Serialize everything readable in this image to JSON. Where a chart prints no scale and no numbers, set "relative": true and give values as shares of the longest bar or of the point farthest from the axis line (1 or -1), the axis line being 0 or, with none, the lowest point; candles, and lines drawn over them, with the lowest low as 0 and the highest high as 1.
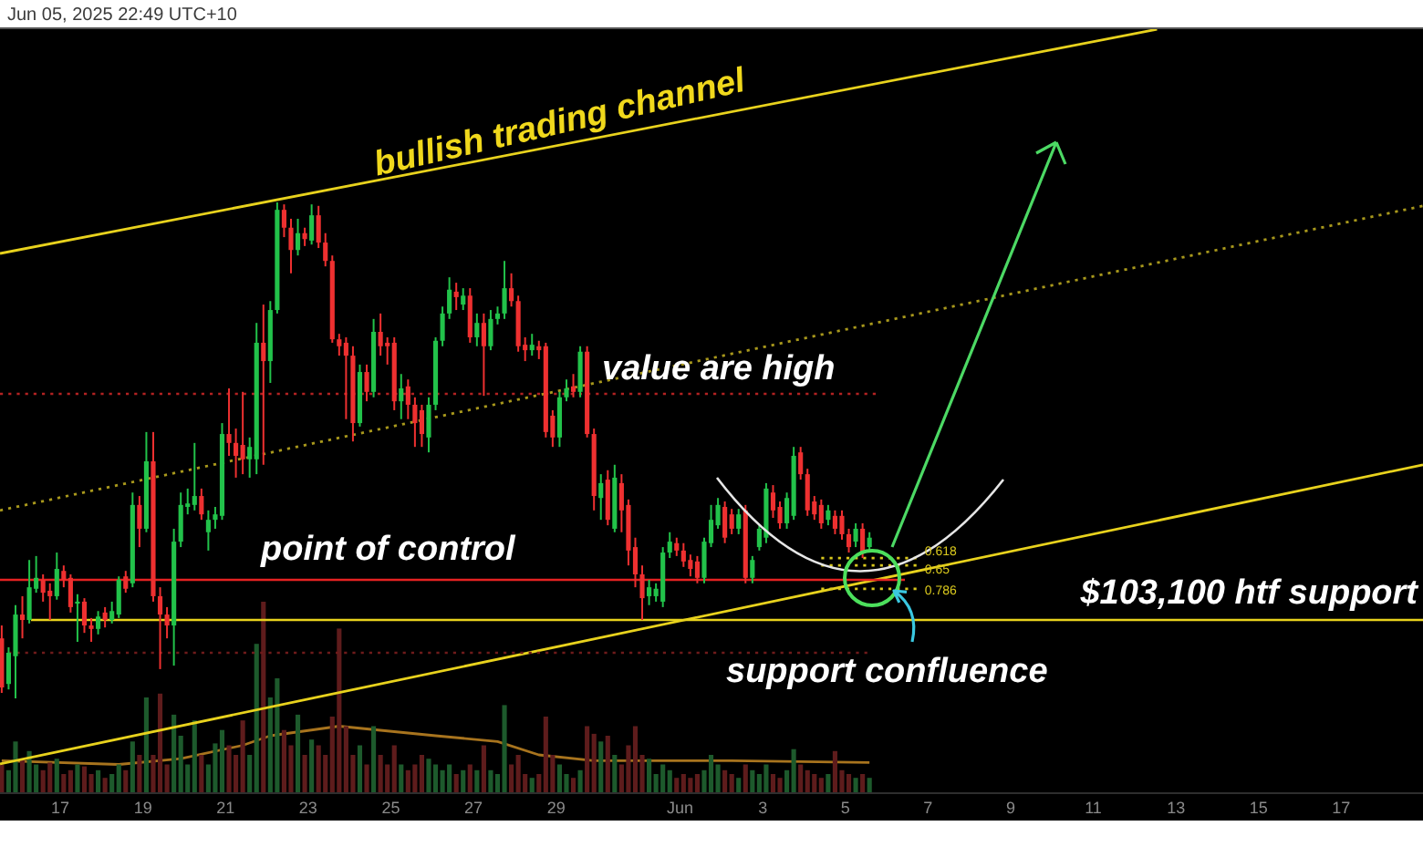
{
  "chart_data": [
    {
      "type": "candlestick",
      "relative": true,
      "tick_labels": false,
      "x": [
        "2025-05-15T14:00",
        "2025-05-15T18:00",
        "2025-05-15T22:00",
        "2025-05-16T02:00",
        "2025-05-16T06:00",
        "2025-05-16T10:00",
        "2025-05-16T14:00",
        "2025-05-16T18:00",
        "2025-05-16T22:00",
        "2025-05-17T02:00",
        "2025-05-17T06:00",
        "2025-05-17T10:00",
        "2025-05-17T14:00",
        "2025-05-17T18:00",
        "2025-05-17T22:00",
        "2025-05-18T02:00",
        "2025-05-18T06:00",
        "2025-05-18T10:00",
        "2025-05-18T14:00",
        "2025-05-18T18:00",
        "2025-05-18T22:00",
        "2025-05-19T02:00",
        "2025-05-19T06:00",
        "2025-05-19T10:00",
        "2025-05-19T14:00",
        "2025-05-19T18:00",
        "2025-05-19T22:00",
        "2025-05-20T02:00",
        "2025-05-20T06:00",
        "2025-05-20T10:00",
        "2025-05-20T14:00",
        "2025-05-20T18:00",
        "2025-05-20T22:00",
        "2025-05-21T02:00",
        "2025-05-21T06:00",
        "2025-05-21T10:00",
        "2025-05-21T14:00",
        "2025-05-21T18:00",
        "2025-05-21T22:00",
        "2025-05-22T02:00",
        "2025-05-22T06:00",
        "2025-05-22T10:00",
        "2025-05-22T14:00",
        "2025-05-22T18:00",
        "2025-05-22T22:00",
        "2025-05-23T02:00",
        "2025-05-23T06:00",
        "2025-05-23T10:00",
        "2025-05-23T14:00",
        "2025-05-23T18:00",
        "2025-05-23T22:00",
        "2025-05-24T02:00",
        "2025-05-24T06:00",
        "2025-05-24T10:00",
        "2025-05-24T14:00",
        "2025-05-24T18:00",
        "2025-05-24T22:00",
        "2025-05-25T02:00",
        "2025-05-25T06:00",
        "2025-05-25T10:00",
        "2025-05-25T14:00",
        "2025-05-25T18:00",
        "2025-05-25T22:00",
        "2025-05-26T02:00",
        "2025-05-26T06:00",
        "2025-05-26T10:00",
        "2025-05-26T14:00",
        "2025-05-26T18:00",
        "2025-05-26T22:00",
        "2025-05-27T02:00",
        "2025-05-27T06:00",
        "2025-05-27T10:00",
        "2025-05-27T14:00",
        "2025-05-27T18:00",
        "2025-05-27T22:00",
        "2025-05-28T02:00",
        "2025-05-28T06:00",
        "2025-05-28T10:00",
        "2025-05-28T14:00",
        "2025-05-28T18:00",
        "2025-05-28T22:00",
        "2025-05-29T02:00",
        "2025-05-29T06:00",
        "2025-05-29T10:00",
        "2025-05-29T14:00",
        "2025-05-29T18:00",
        "2025-05-29T22:00",
        "2025-05-30T02:00",
        "2025-05-30T06:00",
        "2025-05-30T10:00",
        "2025-05-30T14:00",
        "2025-05-30T18:00",
        "2025-05-30T22:00",
        "2025-05-31T02:00",
        "2025-05-31T06:00",
        "2025-05-31T10:00",
        "2025-05-31T14:00",
        "2025-05-31T18:00",
        "2025-05-31T22:00",
        "2025-06-01T02:00",
        "2025-06-01T06:00",
        "2025-06-01T10:00",
        "2025-06-01T14:00",
        "2025-06-01T18:00",
        "2025-06-01T22:00",
        "2025-06-02T02:00",
        "2025-06-02T06:00",
        "2025-06-02T10:00",
        "2025-06-02T14:00",
        "2025-06-02T18:00",
        "2025-06-02T22:00",
        "2025-06-03T02:00",
        "2025-06-03T06:00",
        "2025-06-03T10:00",
        "2025-06-03T14:00",
        "2025-06-03T18:00",
        "2025-06-03T22:00",
        "2025-06-04T02:00",
        "2025-06-04T06:00",
        "2025-06-04T10:00",
        "2025-06-04T14:00",
        "2025-06-04T18:00",
        "2025-06-04T22:00",
        "2025-06-05T02:00",
        "2025-06-05T06:00",
        "2025-06-05T10:00",
        "2025-06-05T14:00"
      ],
      "ohlc": [
        [
          0.121,
          0.147,
          0.011,
          0.022
        ],
        [
          0.029,
          0.103,
          0.018,
          0.092
        ],
        [
          0.085,
          0.188,
          0,
          0.169
        ],
        [
          0.169,
          0.206,
          0.121,
          0.158
        ],
        [
          0.158,
          0.279,
          0.151,
          0.224
        ],
        [
          0.221,
          0.287,
          0.213,
          0.243
        ],
        [
          0.239,
          0.25,
          0.195,
          0.213
        ],
        [
          0.217,
          0.232,
          0.158,
          0.206
        ],
        [
          0.206,
          0.294,
          0.199,
          0.261
        ],
        [
          0.257,
          0.268,
          0.224,
          0.239
        ],
        [
          0.243,
          0.25,
          0.173,
          0.184
        ],
        [
          0.191,
          0.21,
          0.114,
          0.195
        ],
        [
          0.195,
          0.202,
          0.132,
          0.147
        ],
        [
          0.147,
          0.162,
          0.114,
          0.14
        ],
        [
          0.14,
          0.176,
          0.129,
          0.165
        ],
        [
          0.173,
          0.184,
          0.143,
          0.158
        ],
        [
          0.158,
          0.195,
          0.151,
          0.176
        ],
        [
          0.169,
          0.246,
          0.162,
          0.239
        ],
        [
          0.246,
          0.257,
          0.213,
          0.221
        ],
        [
          0.232,
          0.415,
          0.224,
          0.39
        ],
        [
          0.39,
          0.408,
          0.305,
          0.342
        ],
        [
          0.342,
          0.537,
          0.335,
          0.478
        ],
        [
          0.478,
          0.537,
          0.195,
          0.206
        ],
        [
          0.206,
          0.224,
          0.059,
          0.169
        ],
        [
          0.169,
          0.184,
          0.121,
          0.147
        ],
        [
          0.147,
          0.342,
          0.066,
          0.316
        ],
        [
          0.316,
          0.415,
          0.305,
          0.39
        ],
        [
          0.386,
          0.423,
          0.371,
          0.393
        ],
        [
          0.39,
          0.515,
          0.379,
          0.408
        ],
        [
          0.408,
          0.423,
          0.36,
          0.371
        ],
        [
          0.335,
          0.379,
          0.298,
          0.36
        ],
        [
          0.36,
          0.386,
          0.342,
          0.371
        ],
        [
          0.368,
          0.555,
          0.36,
          0.533
        ],
        [
          0.533,
          0.625,
          0.489,
          0.515
        ],
        [
          0.515,
          0.544,
          0.445,
          0.489
        ],
        [
          0.511,
          0.618,
          0.452,
          0.482
        ],
        [
          0.482,
          0.526,
          0.445,
          0.507
        ],
        [
          0.482,
          0.757,
          0.452,
          0.717
        ],
        [
          0.717,
          0.794,
          0.471,
          0.68
        ],
        [
          0.68,
          0.801,
          0.636,
          0.783
        ],
        [
          0.783,
          1,
          0.776,
          0.985
        ],
        [
          0.985,
          0.996,
          0.93,
          0.949
        ],
        [
          0.949,
          0.967,
          0.857,
          0.904
        ],
        [
          0.904,
          0.967,
          0.893,
          0.938
        ],
        [
          0.938,
          0.949,
          0.912,
          0.926
        ],
        [
          0.923,
          0.996,
          0.915,
          0.974
        ],
        [
          0.974,
          0.993,
          0.908,
          0.919
        ],
        [
          0.919,
          0.938,
          0.871,
          0.882
        ],
        [
          0.882,
          0.893,
          0.717,
          0.724
        ],
        [
          0.724,
          0.735,
          0.691,
          0.71
        ],
        [
          0.717,
          0.728,
          0.563,
          0.691
        ],
        [
          0.691,
          0.71,
          0.518,
          0.555
        ],
        [
          0.555,
          0.673,
          0.548,
          0.658
        ],
        [
          0.658,
          0.673,
          0.599,
          0.618
        ],
        [
          0.618,
          0.765,
          0.607,
          0.739
        ],
        [
          0.739,
          0.776,
          0.691,
          0.71
        ],
        [
          0.717,
          0.728,
          0.673,
          0.71
        ],
        [
          0.717,
          0.728,
          0.581,
          0.599
        ],
        [
          0.599,
          0.654,
          0.563,
          0.625
        ],
        [
          0.629,
          0.643,
          0.563,
          0.592
        ],
        [
          0.592,
          0.607,
          0.507,
          0.555
        ],
        [
          0.581,
          0.592,
          0.507,
          0.533
        ],
        [
          0.526,
          0.607,
          0.496,
          0.592
        ],
        [
          0.592,
          0.728,
          0.581,
          0.721
        ],
        [
          0.721,
          0.79,
          0.71,
          0.776
        ],
        [
          0.776,
          0.849,
          0.765,
          0.824
        ],
        [
          0.82,
          0.838,
          0.783,
          0.809
        ],
        [
          0.794,
          0.827,
          0.783,
          0.812
        ],
        [
          0.812,
          0.827,
          0.717,
          0.728
        ],
        [
          0.728,
          0.776,
          0.71,
          0.757
        ],
        [
          0.757,
          0.776,
          0.61,
          0.71
        ],
        [
          0.71,
          0.783,
          0.702,
          0.765
        ],
        [
          0.765,
          0.79,
          0.754,
          0.776
        ],
        [
          0.776,
          0.882,
          0.765,
          0.827
        ],
        [
          0.827,
          0.857,
          0.79,
          0.801
        ],
        [
          0.801,
          0.812,
          0.699,
          0.71
        ],
        [
          0.713,
          0.728,
          0.68,
          0.702
        ],
        [
          0.702,
          0.735,
          0.691,
          0.713
        ],
        [
          0.71,
          0.721,
          0.684,
          0.702
        ],
        [
          0.71,
          0.717,
          0.526,
          0.537
        ],
        [
          0.57,
          0.581,
          0.507,
          0.526
        ],
        [
          0.526,
          0.618,
          0.507,
          0.607
        ],
        [
          0.607,
          0.643,
          0.599,
          0.625
        ],
        [
          0.629,
          0.654,
          0.607,
          0.618
        ],
        [
          0.618,
          0.71,
          0.607,
          0.699
        ],
        [
          0.699,
          0.71,
          0.526,
          0.533
        ],
        [
          0.533,
          0.544,
          0.379,
          0.408
        ],
        [
          0.404,
          0.452,
          0.36,
          0.434
        ],
        [
          0.441,
          0.46,
          0.349,
          0.36
        ],
        [
          0.342,
          0.471,
          0.335,
          0.445
        ],
        [
          0.434,
          0.452,
          0.335,
          0.379
        ],
        [
          0.39,
          0.401,
          0.268,
          0.298
        ],
        [
          0.305,
          0.324,
          0.224,
          0.25
        ],
        [
          0.25,
          0.268,
          0.158,
          0.202
        ],
        [
          0.206,
          0.239,
          0.188,
          0.224
        ],
        [
          0.206,
          0.232,
          0.195,
          0.221
        ],
        [
          0.195,
          0.305,
          0.184,
          0.294
        ],
        [
          0.294,
          0.335,
          0.283,
          0.316
        ],
        [
          0.313,
          0.324,
          0.287,
          0.298
        ],
        [
          0.298,
          0.313,
          0.265,
          0.276
        ],
        [
          0.279,
          0.29,
          0.246,
          0.261
        ],
        [
          0.276,
          0.287,
          0.232,
          0.243
        ],
        [
          0.243,
          0.324,
          0.232,
          0.316
        ],
        [
          0.313,
          0.39,
          0.305,
          0.36
        ],
        [
          0.349,
          0.404,
          0.342,
          0.39
        ],
        [
          0.386,
          0.397,
          0.313,
          0.324
        ],
        [
          0.371,
          0.382,
          0.331,
          0.342
        ],
        [
          0.342,
          0.382,
          0.331,
          0.371
        ],
        [
          0.379,
          0.39,
          0.232,
          0.243
        ],
        [
          0.243,
          0.287,
          0.232,
          0.279
        ],
        [
          0.305,
          0.349,
          0.298,
          0.342
        ],
        [
          0.324,
          0.434,
          0.313,
          0.423
        ],
        [
          0.415,
          0.43,
          0.364,
          0.379
        ],
        [
          0.386,
          0.397,
          0.342,
          0.353
        ],
        [
          0.353,
          0.415,
          0.342,
          0.404
        ],
        [
          0.368,
          0.507,
          0.36,
          0.489
        ],
        [
          0.496,
          0.507,
          0.441,
          0.452
        ],
        [
          0.452,
          0.463,
          0.368,
          0.379
        ],
        [
          0.397,
          0.408,
          0.36,
          0.371
        ],
        [
          0.39,
          0.401,
          0.342,
          0.353
        ],
        [
          0.36,
          0.39,
          0.349,
          0.379
        ],
        [
          0.368,
          0.379,
          0.331,
          0.342
        ],
        [
          0.368,
          0.379,
          0.32,
          0.331
        ],
        [
          0.331,
          0.342,
          0.294,
          0.305
        ],
        [
          0.316,
          0.353,
          0.305,
          0.342
        ],
        [
          0.342,
          0.353,
          0.283,
          0.294
        ],
        [
          0.305,
          0.335,
          0.298,
          0.324
        ]
      ],
      "colors": [
        "#ee3030",
        "#22c24a",
        "#22c24a",
        "#ee3030",
        "#22c24a",
        "#22c24a",
        "#ee3030",
        "#ee3030",
        "#22c24a",
        "#ee3030",
        "#ee3030",
        "#22c24a",
        "#ee3030",
        "#ee3030",
        "#22c24a",
        "#ee3030",
        "#22c24a",
        "#22c24a",
        "#ee3030",
        "#22c24a",
        "#ee3030",
        "#22c24a",
        "#ee3030",
        "#ee3030",
        "#ee3030",
        "#22c24a",
        "#22c24a",
        "#22c24a",
        "#22c24a",
        "#ee3030",
        "#22c24a",
        "#22c24a",
        "#22c24a",
        "#ee3030",
        "#ee3030",
        "#ee3030",
        "#22c24a",
        "#22c24a",
        "#ee3030",
        "#22c24a",
        "#22c24a",
        "#ee3030",
        "#ee3030",
        "#22c24a",
        "#ee3030",
        "#22c24a",
        "#ee3030",
        "#ee3030",
        "#ee3030",
        "#ee3030",
        "#ee3030",
        "#ee3030",
        "#22c24a",
        "#ee3030",
        "#22c24a",
        "#ee3030",
        "#ee3030",
        "#ee3030",
        "#22c24a",
        "#ee3030",
        "#ee3030",
        "#ee3030",
        "#22c24a",
        "#22c24a",
        "#22c24a",
        "#22c24a",
        "#ee3030",
        "#22c24a",
        "#ee3030",
        "#22c24a",
        "#ee3030",
        "#22c24a",
        "#22c24a",
        "#22c24a",
        "#ee3030",
        "#ee3030",
        "#ee3030",
        "#22c24a",
        "#ee3030",
        "#ee3030",
        "#ee3030",
        "#22c24a",
        "#22c24a",
        "#ee3030",
        "#22c24a",
        "#ee3030",
        "#ee3030",
        "#22c24a",
        "#ee3030",
        "#22c24a",
        "#ee3030",
        "#ee3030",
        "#ee3030",
        "#ee3030",
        "#22c24a",
        "#22c24a",
        "#22c24a",
        "#22c24a",
        "#ee3030",
        "#ee3030",
        "#ee3030",
        "#ee3030",
        "#22c24a",
        "#22c24a",
        "#22c24a",
        "#ee3030",
        "#ee3030",
        "#22c24a",
        "#ee3030",
        "#22c24a",
        "#22c24a",
        "#22c24a",
        "#ee3030",
        "#ee3030",
        "#22c24a",
        "#22c24a",
        "#ee3030",
        "#ee3030",
        "#ee3030",
        "#ee3030",
        "#22c24a",
        "#ee3030",
        "#ee3030",
        "#ee3030",
        "#22c24a",
        "#ee3030",
        "#22c24a"
      ],
      "xlim": [
        "2025-05-15T13:00",
        "2025-06-18T23:30"
      ],
      "series": [
        {
          "type": "line",
          "color": "#e8d21d",
          "x": [
            "2025-05-15T13:00",
            "2025-06-12T13:00"
          ],
          "values": [
            0.897,
            1.349
          ]
        },
        {
          "type": "line",
          "color": "#a8981c",
          "line_style": "dotted",
          "x": [
            "2025-05-15T13:00",
            "2025-06-18T23:30"
          ],
          "values": [
            0.379,
            0.993
          ]
        },
        {
          "type": "line",
          "color": "#e8d21d",
          "x": [
            "2025-05-15T13:00",
            "2025-06-18T23:30"
          ],
          "values": [
            -0.132,
            0.471
          ]
        },
        {
          "type": "line",
          "name": "0.618",
          "color": "#d9c81d",
          "line_style": "dotted",
          "x": [
            "2025-06-04T10:00",
            "2025-06-06T20:00"
          ],
          "values": [
            0.283,
            0.283
          ]
        },
        {
          "type": "line",
          "name": "0.65",
          "color": "#d9c81d",
          "line_style": "dotted",
          "x": [
            "2025-06-04T10:00",
            "2025-06-06T20:00"
          ],
          "values": [
            0.268,
            0.268
          ]
        },
        {
          "type": "line",
          "name": "0.786",
          "color": "#d9c81d",
          "line_style": "dotted",
          "x": [
            "2025-06-04T10:00",
            "2025-06-06T20:00"
          ],
          "values": [
            0.221,
            0.221
          ]
        }
      ],
      "ref_lines": [
        {
          "axis": "y",
          "value": 0.614,
          "label": "value are high",
          "color": "#b22222",
          "line_style": "dotted"
        },
        {
          "axis": "y",
          "value": 0.239,
          "label": "point of control",
          "color": "#e52222"
        },
        {
          "axis": "y",
          "value": 0.092,
          "color": "#6e1b1b",
          "line_style": "dotted"
        },
        {
          "axis": "y",
          "value": 0.158,
          "label": "$103,100 htf support",
          "color": "#e8d21d"
        }
      ],
      "annotations": [
        "Jun 05, 2025 22:49 UTC+10",
        "bullish trading channel",
        "support confluence"
      ]
    },
    {
      "type": "bar",
      "relative": true,
      "x": [
        "2025-05-15T14:00",
        "2025-05-15T18:00",
        "2025-05-15T22:00",
        "2025-05-16T02:00",
        "2025-05-16T06:00",
        "2025-05-16T10:00",
        "2025-05-16T14:00",
        "2025-05-16T18:00",
        "2025-05-16T22:00",
        "2025-05-17T02:00",
        "2025-05-17T06:00",
        "2025-05-17T10:00",
        "2025-05-17T14:00",
        "2025-05-17T18:00",
        "2025-05-17T22:00",
        "2025-05-18T02:00",
        "2025-05-18T06:00",
        "2025-05-18T10:00",
        "2025-05-18T14:00",
        "2025-05-18T18:00",
        "2025-05-18T22:00",
        "2025-05-19T02:00",
        "2025-05-19T06:00",
        "2025-05-19T10:00",
        "2025-05-19T14:00",
        "2025-05-19T18:00",
        "2025-05-19T22:00",
        "2025-05-20T02:00",
        "2025-05-20T06:00",
        "2025-05-20T10:00",
        "2025-05-20T14:00",
        "2025-05-20T18:00",
        "2025-05-20T22:00",
        "2025-05-21T02:00",
        "2025-05-21T06:00",
        "2025-05-21T10:00",
        "2025-05-21T14:00",
        "2025-05-21T18:00",
        "2025-05-21T22:00",
        "2025-05-22T02:00",
        "2025-05-22T06:00",
        "2025-05-22T10:00",
        "2025-05-22T14:00",
        "2025-05-22T18:00",
        "2025-05-22T22:00",
        "2025-05-23T02:00",
        "2025-05-23T06:00",
        "2025-05-23T10:00",
        "2025-05-23T14:00",
        "2025-05-23T18:00",
        "2025-05-23T22:00",
        "2025-05-24T02:00",
        "2025-05-24T06:00",
        "2025-05-24T10:00",
        "2025-05-24T14:00",
        "2025-05-24T18:00",
        "2025-05-24T22:00",
        "2025-05-25T02:00",
        "2025-05-25T06:00",
        "2025-05-25T10:00",
        "2025-05-25T14:00",
        "2025-05-25T18:00",
        "2025-05-25T22:00",
        "2025-05-26T02:00",
        "2025-05-26T06:00",
        "2025-05-26T10:00",
        "2025-05-26T14:00",
        "2025-05-26T18:00",
        "2025-05-26T22:00",
        "2025-05-27T02:00",
        "2025-05-27T06:00",
        "2025-05-27T10:00",
        "2025-05-27T14:00",
        "2025-05-27T18:00",
        "2025-05-27T22:00",
        "2025-05-28T02:00",
        "2025-05-28T06:00",
        "2025-05-28T10:00",
        "2025-05-28T14:00",
        "2025-05-28T18:00",
        "2025-05-28T22:00",
        "2025-05-29T02:00",
        "2025-05-29T06:00",
        "2025-05-29T10:00",
        "2025-05-29T14:00",
        "2025-05-29T18:00",
        "2025-05-29T22:00",
        "2025-05-30T02:00",
        "2025-05-30T06:00",
        "2025-05-30T10:00",
        "2025-05-30T14:00",
        "2025-05-30T18:00",
        "2025-05-30T22:00",
        "2025-05-31T02:00",
        "2025-05-31T06:00",
        "2025-05-31T10:00",
        "2025-05-31T14:00",
        "2025-05-31T18:00",
        "2025-05-31T22:00",
        "2025-06-01T02:00",
        "2025-06-01T06:00",
        "2025-06-01T10:00",
        "2025-06-01T14:00",
        "2025-06-01T18:00",
        "2025-06-01T22:00",
        "2025-06-02T02:00",
        "2025-06-02T06:00",
        "2025-06-02T10:00",
        "2025-06-02T14:00",
        "2025-06-02T18:00",
        "2025-06-02T22:00",
        "2025-06-03T02:00",
        "2025-06-03T06:00",
        "2025-06-03T10:00",
        "2025-06-03T14:00",
        "2025-06-03T18:00",
        "2025-06-03T22:00",
        "2025-06-04T02:00",
        "2025-06-04T06:00",
        "2025-06-04T10:00",
        "2025-06-04T14:00",
        "2025-06-04T18:00",
        "2025-06-04T22:00",
        "2025-06-05T02:00",
        "2025-06-05T06:00",
        "2025-06-05T10:00",
        "2025-06-05T14:00"
      ],
      "values": [
        0.15,
        0.12,
        0.27,
        0.18,
        0.22,
        0.15,
        0.12,
        0.16,
        0.18,
        0.1,
        0.12,
        0.15,
        0.14,
        0.1,
        0.12,
        0.08,
        0.1,
        0.15,
        0.12,
        0.27,
        0.2,
        0.5,
        0.2,
        0.52,
        0.15,
        0.41,
        0.3,
        0.15,
        0.38,
        0.2,
        0.15,
        0.26,
        0.33,
        0.25,
        0.2,
        0.38,
        0.2,
        0.78,
        1,
        0.5,
        0.6,
        0.33,
        0.25,
        0.41,
        0.2,
        0.28,
        0.25,
        0.2,
        0.4,
        0.86,
        0.35,
        0.2,
        0.25,
        0.15,
        0.35,
        0.2,
        0.15,
        0.25,
        0.15,
        0.12,
        0.15,
        0.2,
        0.18,
        0.15,
        0.12,
        0.15,
        0.1,
        0.12,
        0.15,
        0.12,
        0.25,
        0.12,
        0.1,
        0.46,
        0.15,
        0.2,
        0.1,
        0.08,
        0.1,
        0.4,
        0.2,
        0.15,
        0.1,
        0.08,
        0.12,
        0.35,
        0.31,
        0.27,
        0.3,
        0.2,
        0.15,
        0.25,
        0.35,
        0.2,
        0.18,
        0.1,
        0.15,
        0.12,
        0.08,
        0.1,
        0.08,
        0.1,
        0.12,
        0.2,
        0.15,
        0.12,
        0.1,
        0.08,
        0.15,
        0.12,
        0.1,
        0.15,
        0.1,
        0.08,
        0.12,
        0.23,
        0.15,
        0.12,
        0.1,
        0.08,
        0.1,
        0.22,
        0.12,
        0.1,
        0.08,
        0.1,
        0.08
      ],
      "colors": [
        "#5e1c1c",
        "#1d5a2c",
        "#1d5a2c",
        "#5e1c1c",
        "#1d5a2c",
        "#1d5a2c",
        "#5e1c1c",
        "#5e1c1c",
        "#1d5a2c",
        "#5e1c1c",
        "#5e1c1c",
        "#1d5a2c",
        "#5e1c1c",
        "#5e1c1c",
        "#1d5a2c",
        "#5e1c1c",
        "#1d5a2c",
        "#1d5a2c",
        "#5e1c1c",
        "#1d5a2c",
        "#5e1c1c",
        "#1d5a2c",
        "#5e1c1c",
        "#5e1c1c",
        "#5e1c1c",
        "#1d5a2c",
        "#1d5a2c",
        "#1d5a2c",
        "#1d5a2c",
        "#5e1c1c",
        "#1d5a2c",
        "#1d5a2c",
        "#1d5a2c",
        "#5e1c1c",
        "#5e1c1c",
        "#5e1c1c",
        "#1d5a2c",
        "#1d5a2c",
        "#5e1c1c",
        "#1d5a2c",
        "#1d5a2c",
        "#5e1c1c",
        "#5e1c1c",
        "#1d5a2c",
        "#5e1c1c",
        "#1d5a2c",
        "#5e1c1c",
        "#5e1c1c",
        "#5e1c1c",
        "#5e1c1c",
        "#5e1c1c",
        "#5e1c1c",
        "#1d5a2c",
        "#5e1c1c",
        "#1d5a2c",
        "#5e1c1c",
        "#5e1c1c",
        "#5e1c1c",
        "#1d5a2c",
        "#5e1c1c",
        "#5e1c1c",
        "#5e1c1c",
        "#1d5a2c",
        "#1d5a2c",
        "#1d5a2c",
        "#1d5a2c",
        "#5e1c1c",
        "#1d5a2c",
        "#5e1c1c",
        "#1d5a2c",
        "#5e1c1c",
        "#1d5a2c",
        "#1d5a2c",
        "#1d5a2c",
        "#5e1c1c",
        "#5e1c1c",
        "#5e1c1c",
        "#1d5a2c",
        "#5e1c1c",
        "#5e1c1c",
        "#5e1c1c",
        "#1d5a2c",
        "#1d5a2c",
        "#5e1c1c",
        "#1d5a2c",
        "#5e1c1c",
        "#5e1c1c",
        "#1d5a2c",
        "#5e1c1c",
        "#1d5a2c",
        "#5e1c1c",
        "#5e1c1c",
        "#5e1c1c",
        "#5e1c1c",
        "#1d5a2c",
        "#1d5a2c",
        "#1d5a2c",
        "#1d5a2c",
        "#5e1c1c",
        "#5e1c1c",
        "#5e1c1c",
        "#5e1c1c",
        "#1d5a2c",
        "#1d5a2c",
        "#1d5a2c",
        "#5e1c1c",
        "#5e1c1c",
        "#1d5a2c",
        "#5e1c1c",
        "#1d5a2c",
        "#1d5a2c",
        "#1d5a2c",
        "#5e1c1c",
        "#5e1c1c",
        "#1d5a2c",
        "#1d5a2c",
        "#5e1c1c",
        "#5e1c1c",
        "#5e1c1c",
        "#5e1c1c",
        "#1d5a2c",
        "#5e1c1c",
        "#5e1c1c",
        "#5e1c1c",
        "#1d5a2c",
        "#5e1c1c",
        "#1d5a2c"
      ],
      "xlim": [
        "2025-05-15T13:00",
        "2025-06-18T23:30"
      ],
      "xticks": [
        {
          "value": "2025-05-17",
          "label": "17"
        },
        {
          "value": "2025-05-19",
          "label": "19"
        },
        {
          "value": "2025-05-21",
          "label": "21"
        },
        {
          "value": "2025-05-23",
          "label": "23"
        },
        {
          "value": "2025-05-25",
          "label": "25"
        },
        {
          "value": "2025-05-27",
          "label": "27"
        },
        {
          "value": "2025-05-29",
          "label": "29"
        },
        {
          "value": "2025-06-01",
          "label": "Jun"
        },
        {
          "value": "2025-06-03",
          "label": "3"
        },
        {
          "value": "2025-06-05",
          "label": "5"
        },
        {
          "value": "2025-06-07",
          "label": "7"
        },
        {
          "value": "2025-06-09",
          "label": "9"
        },
        {
          "value": "2025-06-11",
          "label": "11"
        },
        {
          "value": "2025-06-13",
          "label": "13"
        },
        {
          "value": "2025-06-15",
          "label": "15"
        },
        {
          "value": "2025-06-17",
          "label": "17"
        }
      ],
      "series": [
        {
          "type": "line",
          "color": "#a8741e",
          "x": [
            "2025-05-15T14:00",
            "2025-05-18T10:00",
            "2025-05-19T22:00",
            "2025-05-21T10:00",
            "2025-05-22T02:00",
            "2025-05-23T18:00",
            "2025-05-26T02:00",
            "2025-05-27T14:00",
            "2025-05-28T14:00",
            "2025-05-29T22:00",
            "2025-06-02T06:00",
            "2025-06-05T14:00"
          ],
          "values": [
            0.17,
            0.15,
            0.18,
            0.25,
            0.3,
            0.35,
            0.3,
            0.27,
            0.2,
            0.17,
            0.17,
            0.16
          ]
        }
      ]
    }
  ]
}
